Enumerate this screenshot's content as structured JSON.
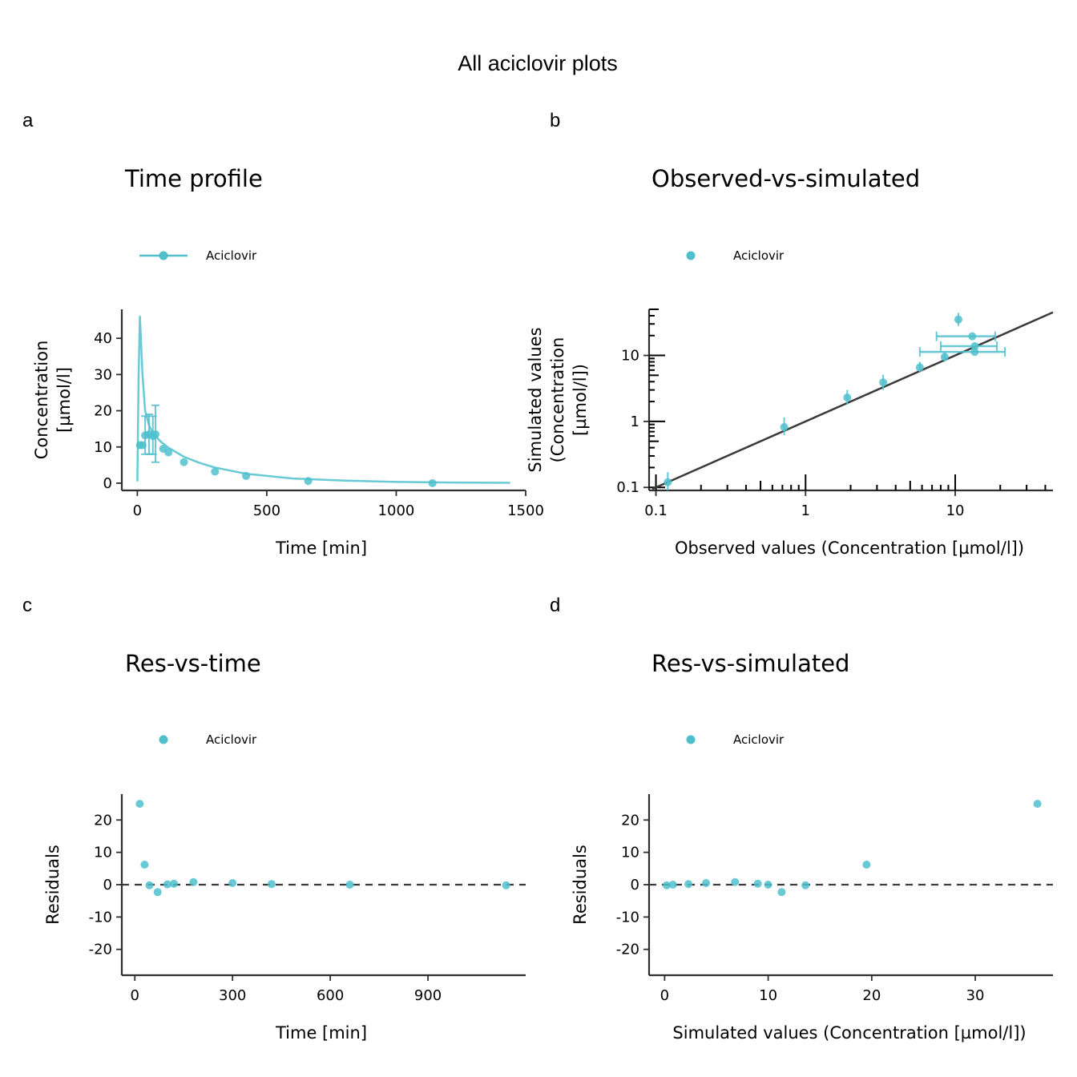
{
  "main_title": "All aciclovir plots",
  "color": "#4fbfcc",
  "chart_data": [
    {
      "tag": "a",
      "title": "Time profile",
      "type": "line",
      "legend": "Aciclovir",
      "legend_position": "top-left",
      "xlabel": "Time [min]",
      "ylabel": [
        "Concentration",
        "[µmol/l]"
      ],
      "xlim": [
        -60,
        1500
      ],
      "ylim": [
        -2,
        48
      ],
      "xticks": [
        0,
        500,
        1000,
        1500
      ],
      "xtick_labels": [
        "0",
        "500",
        "1000",
        "1500"
      ],
      "yticks": [
        0,
        10,
        20,
        30,
        40
      ],
      "ytick_labels": [
        "0",
        "10",
        "20",
        "30",
        "40"
      ],
      "simulated": {
        "x": [
          0,
          5,
          10,
          15,
          20,
          30,
          45,
          60,
          90,
          120,
          180,
          240,
          300,
          420,
          600,
          800,
          1000,
          1200,
          1440
        ],
        "y": [
          0.5,
          30,
          46,
          38,
          30,
          20,
          16,
          13.8,
          11.5,
          9.8,
          7.3,
          5.6,
          4.3,
          2.6,
          1.3,
          0.7,
          0.35,
          0.2,
          0.1
        ]
      },
      "observed": {
        "x": [
          10,
          20,
          30,
          45,
          60,
          70,
          100,
          120,
          180,
          300,
          420,
          660,
          1140
        ],
        "y": [
          10.5,
          10.5,
          13.2,
          13.5,
          13,
          13.5,
          9.5,
          8.5,
          5.8,
          3.2,
          2,
          0.6,
          0
        ],
        "err_low": [
          null,
          null,
          8,
          8,
          8,
          5.8,
          null,
          null,
          null,
          null,
          null,
          null,
          null
        ],
        "err_high": [
          null,
          null,
          18.5,
          19,
          18.5,
          21.5,
          null,
          null,
          null,
          null,
          null,
          null,
          null
        ]
      }
    },
    {
      "tag": "b",
      "title": "Observed-vs-simulated",
      "type": "scatter",
      "scale": "log",
      "legend": "Aciclovir",
      "legend_position": "top-left",
      "xlabel": "Observed values (Concentration [µmol/l])",
      "ylabel": [
        "Simulated values",
        "(Concentration",
        "[µmol/l])"
      ],
      "xlim": [
        0.09,
        45
      ],
      "ylim": [
        0.09,
        50
      ],
      "xticks": [
        0.1,
        1,
        10
      ],
      "xtick_labels": [
        "0.1",
        "1",
        "10"
      ],
      "yticks": [
        0.1,
        1,
        10
      ],
      "ytick_labels": [
        "0.1",
        "1",
        "10"
      ],
      "identity_line": true,
      "points": {
        "x": [
          0.12,
          0.72,
          1.9,
          3.3,
          5.8,
          8.5,
          10.5,
          13,
          13.5,
          13.5
        ],
        "y": [
          0.12,
          0.82,
          2.3,
          3.9,
          6.6,
          9.5,
          35,
          19.5,
          13.8,
          11.3
        ],
        "y_low": [
          0.09,
          0.62,
          1.8,
          3.0,
          5.5,
          8.0,
          28,
          null,
          null,
          null
        ],
        "y_high": [
          0.17,
          1.15,
          3.0,
          5.1,
          8.0,
          11.2,
          44,
          null,
          null,
          null
        ],
        "x_low": [
          null,
          null,
          null,
          null,
          null,
          null,
          null,
          7.5,
          8.0,
          5.8
        ],
        "x_high": [
          null,
          null,
          null,
          null,
          null,
          null,
          null,
          18.5,
          19,
          21.5
        ]
      }
    },
    {
      "tag": "c",
      "title": "Res-vs-time",
      "type": "scatter",
      "legend": "Aciclovir",
      "legend_position": "top-left",
      "xlabel": "Time [min]",
      "ylabel": [
        "Residuals"
      ],
      "xlim": [
        -40,
        1200
      ],
      "ylim": [
        -28,
        28
      ],
      "xticks": [
        0,
        300,
        600,
        900
      ],
      "xtick_labels": [
        "0",
        "300",
        "600",
        "900"
      ],
      "yticks": [
        -20,
        -10,
        0,
        10,
        20
      ],
      "ytick_labels": [
        "-20",
        "-10",
        "0",
        "10",
        "20"
      ],
      "zero_line": true,
      "points": {
        "x": [
          15,
          30,
          45,
          70,
          100,
          120,
          180,
          300,
          420,
          660,
          1140
        ],
        "y": [
          25,
          6.2,
          -0.2,
          -2.3,
          0.1,
          0.3,
          0.8,
          0.5,
          0.2,
          0,
          -0.2
        ]
      }
    },
    {
      "tag": "d",
      "title": "Res-vs-simulated",
      "type": "scatter",
      "legend": "Aciclovir",
      "legend_position": "top-left",
      "xlabel": "Simulated values (Concentration [µmol/l])",
      "ylabel": [
        "Residuals"
      ],
      "xlim": [
        -1.5,
        37.5
      ],
      "ylim": [
        -28,
        28
      ],
      "xticks": [
        0,
        10,
        20,
        30
      ],
      "xtick_labels": [
        "0",
        "10",
        "20",
        "30"
      ],
      "yticks": [
        -20,
        -10,
        0,
        10,
        20
      ],
      "ytick_labels": [
        "-20",
        "-10",
        "0",
        "10",
        "20"
      ],
      "zero_line": true,
      "points": {
        "x": [
          0.2,
          0.8,
          2.3,
          4,
          6.8,
          9,
          10,
          11.3,
          13.6,
          19.5,
          36
        ],
        "y": [
          -0.2,
          0,
          0.2,
          0.5,
          0.8,
          0.3,
          0,
          -2.3,
          -0.2,
          6.2,
          25
        ]
      }
    }
  ]
}
